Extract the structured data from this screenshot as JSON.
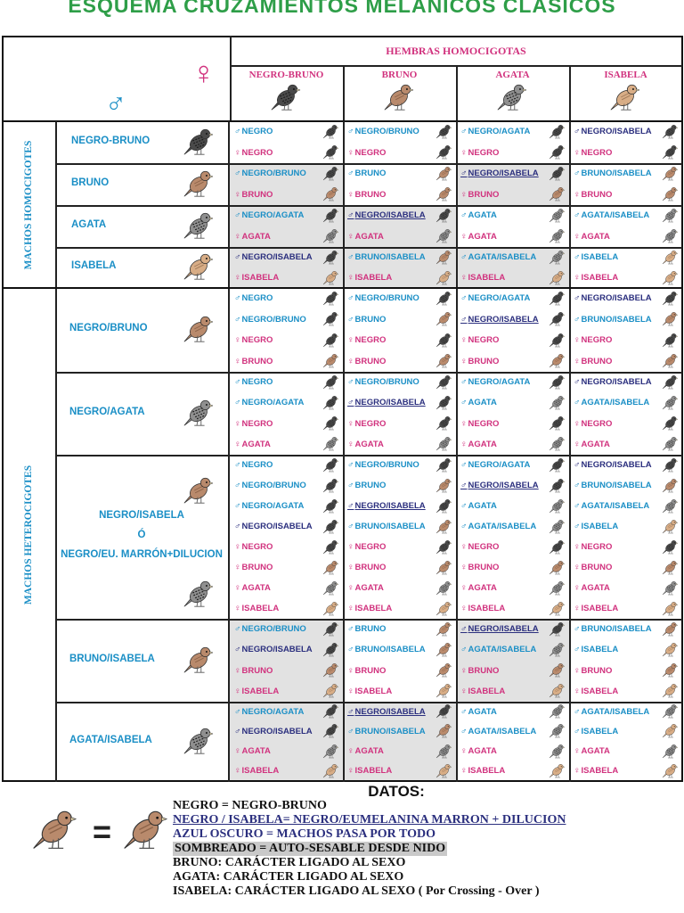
{
  "title": "ESQUEMA CRUZAMIENTOS MELÁNICOS CLÁSICOS",
  "female_header": "HEMBRAS HOMOCIGOTAS",
  "female_symbol": "♀",
  "male_symbol": "♂",
  "female_columns": [
    {
      "label": "NEGRO-BRUNO",
      "bird": "negro"
    },
    {
      "label": "BRUNO",
      "bird": "bruno"
    },
    {
      "label": "AGATA",
      "bird": "agata"
    },
    {
      "label": "ISABELA",
      "bird": "isabela"
    }
  ],
  "groups": [
    {
      "label": "MACHOS HOMOCIGOTES"
    },
    {
      "label": "MACHOS HETEROCIGOTES"
    }
  ],
  "rows": [
    {
      "label": [
        "NEGRO-BRUNO"
      ],
      "bird": "negro"
    },
    {
      "label": [
        "BRUNO"
      ],
      "bird": "bruno"
    },
    {
      "label": [
        "AGATA"
      ],
      "bird": "agata"
    },
    {
      "label": [
        "ISABELA"
      ],
      "bird": "isabela"
    },
    {
      "label": [
        "NEGRO/BRUNO"
      ],
      "bird": "bruno"
    },
    {
      "label": [
        "NEGRO/AGATA"
      ],
      "bird": "agata"
    },
    {
      "label": [
        "NEGRO/ISABELA",
        "Ó",
        "NEGRO/EU. MARRÓN+DILUCION"
      ],
      "bird": "bruno"
    },
    {
      "label": [
        "BRUNO/ISABELA"
      ],
      "bird": "bruno"
    },
    {
      "label": [
        "AGATA/ISABELA"
      ],
      "bird": "agata"
    }
  ],
  "cells": [
    [
      {
        "shade": false,
        "entries": [
          {
            "s": "♂",
            "t": "NEGRO",
            "b": "negro"
          },
          {
            "s": "♀",
            "t": "NEGRO",
            "b": "negro"
          }
        ]
      },
      {
        "shade": false,
        "entries": [
          {
            "s": "♂",
            "t": "NEGRO/BRUNO",
            "b": "negro"
          },
          {
            "s": "♀",
            "t": "NEGRO",
            "b": "negro"
          }
        ]
      },
      {
        "shade": false,
        "entries": [
          {
            "s": "♂",
            "t": "NEGRO/AGATA",
            "b": "negro"
          },
          {
            "s": "♀",
            "t": "NEGRO",
            "b": "negro"
          }
        ]
      },
      {
        "shade": false,
        "entries": [
          {
            "s": "♂",
            "t": "NEGRO/ISABELA",
            "b": "negro",
            "dark": true
          },
          {
            "s": "♀",
            "t": "NEGRO",
            "b": "negro"
          }
        ]
      }
    ],
    [
      {
        "shade": true,
        "entries": [
          {
            "s": "♂",
            "t": "NEGRO/BRUNO",
            "b": "negro"
          },
          {
            "s": "♀",
            "t": "BRUNO",
            "b": "bruno"
          }
        ]
      },
      {
        "shade": false,
        "entries": [
          {
            "s": "♂",
            "t": "BRUNO",
            "b": "bruno"
          },
          {
            "s": "♀",
            "t": "BRUNO",
            "b": "bruno"
          }
        ]
      },
      {
        "shade": true,
        "entries": [
          {
            "s": "♂",
            "t": "NEGRO/ISABELA",
            "b": "negro",
            "dark": true,
            "under": true
          },
          {
            "s": "♀",
            "t": "BRUNO",
            "b": "bruno"
          }
        ]
      },
      {
        "shade": false,
        "entries": [
          {
            "s": "♂",
            "t": "BRUNO/ISABELA",
            "b": "bruno"
          },
          {
            "s": "♀",
            "t": "BRUNO",
            "b": "bruno"
          }
        ]
      }
    ],
    [
      {
        "shade": true,
        "entries": [
          {
            "s": "♂",
            "t": "NEGRO/AGATA",
            "b": "negro"
          },
          {
            "s": "♀",
            "t": "AGATA",
            "b": "agata"
          }
        ]
      },
      {
        "shade": true,
        "entries": [
          {
            "s": "♂",
            "t": "NEGRO/ISABELA",
            "b": "negro",
            "dark": true,
            "under": true
          },
          {
            "s": "♀",
            "t": "AGATA",
            "b": "agata"
          }
        ]
      },
      {
        "shade": false,
        "entries": [
          {
            "s": "♂",
            "t": "AGATA",
            "b": "agata"
          },
          {
            "s": "♀",
            "t": "AGATA",
            "b": "agata"
          }
        ]
      },
      {
        "shade": false,
        "entries": [
          {
            "s": "♂",
            "t": "AGATA/ISABELA",
            "b": "agata"
          },
          {
            "s": "♀",
            "t": "AGATA",
            "b": "agata"
          }
        ]
      }
    ],
    [
      {
        "shade": true,
        "entries": [
          {
            "s": "♂",
            "t": "NEGRO/ISABELA",
            "b": "negro",
            "dark": true
          },
          {
            "s": "♀",
            "t": "ISABELA",
            "b": "isabela"
          }
        ]
      },
      {
        "shade": true,
        "entries": [
          {
            "s": "♂",
            "t": "BRUNO/ISABELA",
            "b": "bruno"
          },
          {
            "s": "♀",
            "t": "ISABELA",
            "b": "isabela"
          }
        ]
      },
      {
        "shade": true,
        "entries": [
          {
            "s": "♂",
            "t": "AGATA/ISABELA",
            "b": "agata"
          },
          {
            "s": "♀",
            "t": "ISABELA",
            "b": "isabela"
          }
        ]
      },
      {
        "shade": false,
        "entries": [
          {
            "s": "♂",
            "t": "ISABELA",
            "b": "isabela"
          },
          {
            "s": "♀",
            "t": "ISABELA",
            "b": "isabela"
          }
        ]
      }
    ],
    [
      {
        "shade": false,
        "entries": [
          {
            "s": "♂",
            "t": "NEGRO",
            "b": "negro"
          },
          {
            "s": "♂",
            "t": "NEGRO/BRUNO",
            "b": "negro"
          },
          {
            "s": "♀",
            "t": "NEGRO",
            "b": "negro"
          },
          {
            "s": "♀",
            "t": "BRUNO",
            "b": "bruno"
          }
        ]
      },
      {
        "shade": false,
        "entries": [
          {
            "s": "♂",
            "t": "NEGRO/BRUNO",
            "b": "negro"
          },
          {
            "s": "♂",
            "t": "BRUNO",
            "b": "bruno"
          },
          {
            "s": "♀",
            "t": "NEGRO",
            "b": "negro"
          },
          {
            "s": "♀",
            "t": "BRUNO",
            "b": "bruno"
          }
        ]
      },
      {
        "shade": false,
        "entries": [
          {
            "s": "♂",
            "t": "NEGRO/AGATA",
            "b": "negro"
          },
          {
            "s": "♂",
            "t": "NEGRO/ISABELA",
            "b": "negro",
            "dark": true,
            "under": true
          },
          {
            "s": "♀",
            "t": "NEGRO",
            "b": "negro"
          },
          {
            "s": "♀",
            "t": "BRUNO",
            "b": "bruno"
          }
        ]
      },
      {
        "shade": false,
        "entries": [
          {
            "s": "♂",
            "t": "NEGRO/ISABELA",
            "b": "negro",
            "dark": true
          },
          {
            "s": "♂",
            "t": "BRUNO/ISABELA",
            "b": "bruno"
          },
          {
            "s": "♀",
            "t": "NEGRO",
            "b": "negro"
          },
          {
            "s": "♀",
            "t": "BRUNO",
            "b": "bruno"
          }
        ]
      }
    ],
    [
      {
        "shade": false,
        "entries": [
          {
            "s": "♂",
            "t": "NEGRO",
            "b": "negro"
          },
          {
            "s": "♂",
            "t": "NEGRO/AGATA",
            "b": "negro"
          },
          {
            "s": "♀",
            "t": "NEGRO",
            "b": "negro"
          },
          {
            "s": "♀",
            "t": "AGATA",
            "b": "agata"
          }
        ]
      },
      {
        "shade": false,
        "entries": [
          {
            "s": "♂",
            "t": "NEGRO/BRUNO",
            "b": "negro"
          },
          {
            "s": "♂",
            "t": "NEGRO/ISABELA",
            "b": "negro",
            "dark": true,
            "under": true
          },
          {
            "s": "♀",
            "t": "NEGRO",
            "b": "negro"
          },
          {
            "s": "♀",
            "t": "AGATA",
            "b": "agata"
          }
        ]
      },
      {
        "shade": false,
        "entries": [
          {
            "s": "♂",
            "t": "NEGRO/AGATA",
            "b": "negro"
          },
          {
            "s": "♂",
            "t": "AGATA",
            "b": "agata"
          },
          {
            "s": "♀",
            "t": "NEGRO",
            "b": "negro"
          },
          {
            "s": "♀",
            "t": "AGATA",
            "b": "agata"
          }
        ]
      },
      {
        "shade": false,
        "entries": [
          {
            "s": "♂",
            "t": "NEGRO/ISABELA",
            "b": "negro",
            "dark": true
          },
          {
            "s": "♂",
            "t": "AGATA/ISABELA",
            "b": "agata"
          },
          {
            "s": "♀",
            "t": "NEGRO",
            "b": "negro"
          },
          {
            "s": "♀",
            "t": "AGATA",
            "b": "agata"
          }
        ]
      }
    ],
    [
      {
        "shade": false,
        "entries": [
          {
            "s": "♂",
            "t": "NEGRO",
            "b": "negro"
          },
          {
            "s": "♂",
            "t": "NEGRO/BRUNO",
            "b": "negro"
          },
          {
            "s": "♂",
            "t": "NEGRO/AGATA",
            "b": "negro"
          },
          {
            "s": "♂",
            "t": "NEGRO/ISABELA",
            "b": "negro",
            "dark": true
          },
          {
            "s": "♀",
            "t": "NEGRO",
            "b": "negro"
          },
          {
            "s": "♀",
            "t": "BRUNO",
            "b": "bruno"
          },
          {
            "s": "♀",
            "t": "AGATA",
            "b": "agata"
          },
          {
            "s": "♀",
            "t": "ISABELA",
            "b": "isabela"
          }
        ]
      },
      {
        "shade": false,
        "entries": [
          {
            "s": "♂",
            "t": "NEGRO/BRUNO",
            "b": "negro"
          },
          {
            "s": "♂",
            "t": "BRUNO",
            "b": "bruno"
          },
          {
            "s": "♂",
            "t": "NEGRO/ISABELA",
            "b": "negro",
            "dark": true,
            "under": true
          },
          {
            "s": "♂",
            "t": "BRUNO/ISABELA",
            "b": "bruno"
          },
          {
            "s": "♀",
            "t": "NEGRO",
            "b": "negro"
          },
          {
            "s": "♀",
            "t": "BRUNO",
            "b": "bruno"
          },
          {
            "s": "♀",
            "t": "AGATA",
            "b": "agata"
          },
          {
            "s": "♀",
            "t": "ISABELA",
            "b": "isabela"
          }
        ]
      },
      {
        "shade": false,
        "entries": [
          {
            "s": "♂",
            "t": "NEGRO/AGATA",
            "b": "negro"
          },
          {
            "s": "♂",
            "t": "NEGRO/ISABELA",
            "b": "negro",
            "dark": true,
            "under": true
          },
          {
            "s": "♂",
            "t": "AGATA",
            "b": "agata"
          },
          {
            "s": "♂",
            "t": "AGATA/ISABELA",
            "b": "agata"
          },
          {
            "s": "♀",
            "t": "NEGRO",
            "b": "negro"
          },
          {
            "s": "♀",
            "t": "BRUNO",
            "b": "bruno"
          },
          {
            "s": "♀",
            "t": "AGATA",
            "b": "agata"
          },
          {
            "s": "♀",
            "t": "ISABELA",
            "b": "isabela"
          }
        ]
      },
      {
        "shade": false,
        "entries": [
          {
            "s": "♂",
            "t": "NEGRO/ISABELA",
            "b": "negro",
            "dark": true
          },
          {
            "s": "♂",
            "t": "BRUNO/ISABELA",
            "b": "bruno"
          },
          {
            "s": "♂",
            "t": "AGATA/ISABELA",
            "b": "agata"
          },
          {
            "s": "♂",
            "t": "ISABELA",
            "b": "isabela"
          },
          {
            "s": "♀",
            "t": "NEGRO",
            "b": "negro"
          },
          {
            "s": "♀",
            "t": "BRUNO",
            "b": "bruno"
          },
          {
            "s": "♀",
            "t": "AGATA",
            "b": "agata"
          },
          {
            "s": "♀",
            "t": "ISABELA",
            "b": "isabela"
          }
        ]
      }
    ],
    [
      {
        "shade": true,
        "entries": [
          {
            "s": "♂",
            "t": "NEGRO/BRUNO",
            "b": "negro"
          },
          {
            "s": "♂",
            "t": "NEGRO/ISABELA",
            "b": "negro",
            "dark": true
          },
          {
            "s": "♀",
            "t": "BRUNO",
            "b": "bruno"
          },
          {
            "s": "♀",
            "t": "ISABELA",
            "b": "isabela"
          }
        ]
      },
      {
        "shade": false,
        "entries": [
          {
            "s": "♂",
            "t": "BRUNO",
            "b": "bruno"
          },
          {
            "s": "♂",
            "t": "BRUNO/ISABELA",
            "b": "bruno"
          },
          {
            "s": "♀",
            "t": "BRUNO",
            "b": "bruno"
          },
          {
            "s": "♀",
            "t": "ISABELA",
            "b": "isabela"
          }
        ]
      },
      {
        "shade": true,
        "entries": [
          {
            "s": "♂",
            "t": "NEGRO/ISABELA",
            "b": "negro",
            "dark": true,
            "under": true
          },
          {
            "s": "♂",
            "t": "AGATA/ISABELA",
            "b": "agata"
          },
          {
            "s": "♀",
            "t": "BRUNO",
            "b": "bruno"
          },
          {
            "s": "♀",
            "t": "ISABELA",
            "b": "isabela"
          }
        ]
      },
      {
        "shade": false,
        "entries": [
          {
            "s": "♂",
            "t": "BRUNO/ISABELA",
            "b": "bruno"
          },
          {
            "s": "♂",
            "t": "ISABELA",
            "b": "isabela"
          },
          {
            "s": "♀",
            "t": "BRUNO",
            "b": "bruno"
          },
          {
            "s": "♀",
            "t": "ISABELA",
            "b": "isabela"
          }
        ]
      }
    ],
    [
      {
        "shade": true,
        "entries": [
          {
            "s": "♂",
            "t": "NEGRO/AGATA",
            "b": "negro"
          },
          {
            "s": "♂",
            "t": "NEGRO/ISABELA",
            "b": "negro",
            "dark": true
          },
          {
            "s": "♀",
            "t": "AGATA",
            "b": "agata"
          },
          {
            "s": "♀",
            "t": "ISABELA",
            "b": "isabela"
          }
        ]
      },
      {
        "shade": true,
        "entries": [
          {
            "s": "♂",
            "t": "NEGRO/ISABELA",
            "b": "negro",
            "dark": true,
            "under": true
          },
          {
            "s": "♂",
            "t": "BRUNO/ISABELA",
            "b": "bruno"
          },
          {
            "s": "♀",
            "t": "AGATA",
            "b": "agata"
          },
          {
            "s": "♀",
            "t": "ISABELA",
            "b": "isabela"
          }
        ]
      },
      {
        "shade": false,
        "entries": [
          {
            "s": "♂",
            "t": "AGATA",
            "b": "agata"
          },
          {
            "s": "♂",
            "t": "AGATA/ISABELA",
            "b": "agata"
          },
          {
            "s": "♀",
            "t": "AGATA",
            "b": "agata"
          },
          {
            "s": "♀",
            "t": "ISABELA",
            "b": "isabela"
          }
        ]
      },
      {
        "shade": false,
        "entries": [
          {
            "s": "♂",
            "t": "AGATA/ISABELA",
            "b": "agata"
          },
          {
            "s": "♂",
            "t": "ISABELA",
            "b": "isabela"
          },
          {
            "s": "♀",
            "t": "AGATA",
            "b": "agata"
          },
          {
            "s": "♀",
            "t": "ISABELA",
            "b": "isabela"
          }
        ]
      }
    ]
  ],
  "datos": {
    "title": "DATOS:",
    "equals": "=",
    "lines": [
      {
        "text": "NEGRO = NEGRO-BRUNO",
        "color": "#111111"
      },
      {
        "text": "NEGRO / ISABELA= NEGRO/EUMELANINA MARRON + DILUCION",
        "color": "#2b2f7e"
      },
      {
        "text": "AZUL OSCURO = MACHOS PASA POR TODO",
        "color": "#2b2f7e"
      },
      {
        "text": "SOMBREADO = AUTO-SESABLE DESDE NIDO",
        "color": "#111111"
      },
      {
        "text": "BRUNO:    CARÁCTER LIGADO AL SEXO",
        "color": "#111111"
      },
      {
        "text": "AGATA:    CARÁCTER LIGADO AL SEXO",
        "color": "#111111"
      },
      {
        "text": "ISABELA: CARÁCTER LIGADO AL SEXO ( Por Crossing - Over )",
        "color": "#111111"
      }
    ]
  },
  "colors": {
    "male": "#1b8fc6",
    "female": "#d1327e",
    "dark": "#2b2f7e",
    "title": "#2e9e48",
    "shade": "#e2e2e2",
    "negro": "#4a4a4a",
    "bruno": "#b98a6c",
    "agata": "#8f8f8f",
    "isabela": "#d8ad86"
  }
}
